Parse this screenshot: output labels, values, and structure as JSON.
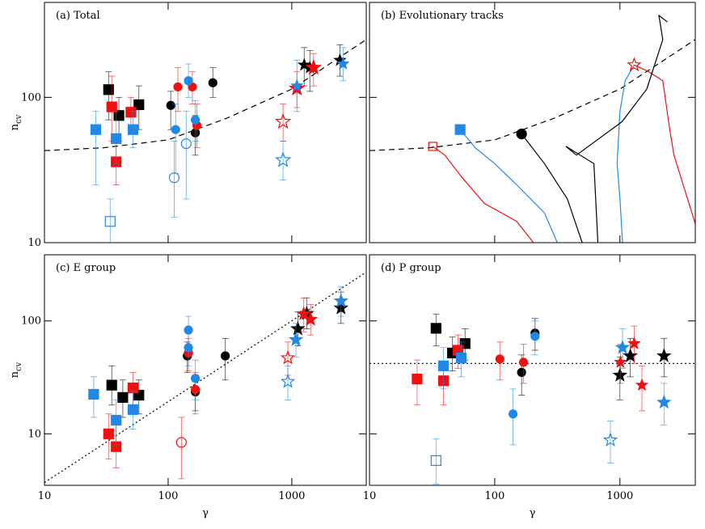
{
  "chart_data": [
    {
      "type": "scatter",
      "title": "(a) Total",
      "xlim": [
        10,
        4000
      ],
      "ylim": [
        10,
        450
      ],
      "log_x": true,
      "log_y": true,
      "yticks": [
        10,
        100
      ],
      "ylabel": {
        "base": "n",
        "sub": "cv"
      },
      "series": [
        {
          "style": "dashed",
          "color": "#000000",
          "x": [
            10,
            30,
            100,
            300,
            1000,
            4000
          ],
          "y": [
            43,
            45,
            51,
            72,
            114,
            250
          ]
        },
        {
          "marker": "square",
          "filled": true,
          "color": "#000000",
          "size": 6,
          "x": [
            33,
            40,
            58
          ],
          "y": [
            113,
            75,
            89
          ],
          "ylow": [
            70,
            50,
            60
          ],
          "yhigh": [
            150,
            100,
            120
          ]
        },
        {
          "marker": "square",
          "filled": true,
          "color": "#f01010",
          "size": 6,
          "x": [
            38,
            50,
            35
          ],
          "y": [
            36,
            79,
            86
          ],
          "ylow": [
            25,
            60,
            50
          ],
          "yhigh": [
            50,
            100,
            140
          ]
        },
        {
          "marker": "square",
          "filled": true,
          "color": "#2288e8",
          "size": 6,
          "x": [
            38,
            52,
            26
          ],
          "y": [
            52,
            60,
            60
          ],
          "ylow": [
            35,
            45,
            25
          ],
          "yhigh": [
            80,
            80,
            80
          ]
        },
        {
          "marker": "square",
          "filled": false,
          "color": "#2288e8",
          "size": 6,
          "x": [
            34
          ],
          "y": [
            14
          ],
          "ylow": [
            10
          ],
          "yhigh": [
            20
          ]
        },
        {
          "marker": "circle",
          "filled": true,
          "color": "#000000",
          "size": 5,
          "x": [
            166,
            105,
            230
          ],
          "y": [
            57,
            88,
            126
          ],
          "ylow": [
            40,
            60,
            100
          ],
          "yhigh": [
            75,
            110,
            160
          ]
        },
        {
          "marker": "circle",
          "filled": true,
          "color": "#f01010",
          "size": 5,
          "x": [
            171,
            157,
            120
          ],
          "y": [
            64,
            118,
            118
          ],
          "ylow": [
            45,
            90,
            80
          ],
          "yhigh": [
            90,
            150,
            160
          ]
        },
        {
          "marker": "circle",
          "filled": true,
          "color": "#2288e8",
          "size": 5,
          "x": [
            166,
            146,
            115
          ],
          "y": [
            70,
            130,
            60
          ],
          "ylow": [
            50,
            100,
            30
          ],
          "yhigh": [
            95,
            170,
            90
          ]
        },
        {
          "marker": "circle",
          "filled": false,
          "color": "#2288e8",
          "size": 6,
          "x": [
            140,
            112
          ],
          "y": [
            48,
            28
          ],
          "ylow": [
            20,
            15
          ],
          "yhigh": [
            80,
            50
          ]
        },
        {
          "marker": "star",
          "filled": true,
          "color": "#000000",
          "size": 7,
          "x": [
            1260,
            2450,
            1400
          ],
          "y": [
            167,
            180,
            160
          ],
          "ylow": [
            120,
            140,
            110
          ],
          "yhigh": [
            220,
            230,
            210
          ]
        },
        {
          "marker": "star",
          "filled": true,
          "color": "#f01010",
          "size": 9,
          "x": [
            1100,
            1500
          ],
          "y": [
            115,
            160
          ],
          "ylow": [
            85,
            120
          ],
          "yhigh": [
            150,
            200
          ]
        },
        {
          "marker": "star",
          "filled": false,
          "color": "#f01010",
          "size": 9,
          "x": [
            850
          ],
          "y": [
            68
          ],
          "ylow": [
            50
          ],
          "yhigh": [
            90
          ]
        },
        {
          "marker": "star",
          "filled": true,
          "color": "#2288e8",
          "size": 7,
          "x": [
            1100,
            2600
          ],
          "y": [
            120,
            170
          ],
          "ylow": [
            80,
            130
          ],
          "yhigh": [
            180,
            220
          ]
        },
        {
          "marker": "star",
          "filled": false,
          "color": "#2288e8",
          "size": 9,
          "x": [
            850
          ],
          "y": [
            37
          ],
          "ylow": [
            27
          ],
          "yhigh": [
            50
          ]
        }
      ]
    },
    {
      "type": "line",
      "title": "(b) Evolutionary tracks",
      "xlim": [
        10,
        4000
      ],
      "ylim": [
        10,
        450
      ],
      "log_x": true,
      "log_y": true,
      "series": [
        {
          "style": "dashed",
          "color": "#000000",
          "x": [
            10,
            30,
            100,
            300,
            1000,
            4000
          ],
          "y": [
            43,
            45,
            51,
            72,
            114,
            250
          ]
        },
        {
          "style": "solid",
          "color": "#f01010",
          "x": [
            4000,
            2700,
            2500,
            2200,
            1700,
            1300,
            null,
            204,
            150,
            83,
            55,
            40,
            32
          ],
          "y": [
            13.5,
            40,
            60,
            130,
            150,
            167,
            null,
            10,
            14,
            18.6,
            28,
            40,
            46
          ]
        },
        {
          "style": "solid",
          "color": "#2288e8",
          "x": [
            1050,
            1000,
            950,
            1000,
            1100,
            1300,
            null,
            316,
            250,
            150,
            100,
            70,
            53
          ],
          "y": [
            10,
            20,
            35,
            80,
            130,
            167,
            null,
            10,
            16,
            25,
            35,
            45,
            60
          ]
        },
        {
          "style": "solid",
          "color": "#000000",
          "x": [
            667,
            620,
            370,
            450,
            1040,
            1640,
            2200,
            2050,
            2400,
            null,
            500,
            380,
            250,
            164
          ],
          "y": [
            10,
            35,
            46,
            40,
            68,
            114,
            250,
            366,
            330,
            null,
            10,
            20,
            35,
            56
          ]
        },
        {
          "marker": "square",
          "filled": true,
          "color": "#2288e8",
          "size": 6,
          "x": [
            53
          ],
          "y": [
            60
          ]
        },
        {
          "marker": "square",
          "filled": false,
          "color": "#f01010",
          "size": 5,
          "x": [
            32
          ],
          "y": [
            46
          ]
        },
        {
          "marker": "circle",
          "filled": true,
          "color": "#000000",
          "size": 6,
          "x": [
            164
          ],
          "y": [
            56
          ]
        },
        {
          "marker": "star",
          "filled": false,
          "color": "#f01010",
          "size": 8,
          "x": [
            1300
          ],
          "y": [
            167
          ]
        }
      ]
    },
    {
      "type": "scatter",
      "title": "(c) E group",
      "xlim": [
        10,
        4000
      ],
      "ylim": [
        3.5,
        385
      ],
      "log_x": true,
      "log_y": true,
      "xticks": [
        10,
        100,
        1000
      ],
      "yticks": [
        10,
        100
      ],
      "xlabel": "γ",
      "ylabel": {
        "base": "n",
        "sub": "cv"
      },
      "series": [
        {
          "style": "dotted",
          "color": "#000000",
          "x": [
            10,
            4000
          ],
          "y": [
            3.7,
            270
          ]
        },
        {
          "marker": "square",
          "filled": true,
          "color": "#000000",
          "size": 6,
          "x": [
            43,
            58,
            35
          ],
          "y": [
            21,
            22,
            27
          ],
          "ylow": [
            14,
            15,
            18
          ],
          "yhigh": [
            30,
            30,
            40
          ]
        },
        {
          "marker": "square",
          "filled": true,
          "color": "#f01010",
          "size": 6,
          "x": [
            38,
            52,
            33
          ],
          "y": [
            7.7,
            25.5,
            10
          ],
          "ylow": [
            5,
            18,
            6
          ],
          "yhigh": [
            12,
            35,
            15
          ]
        },
        {
          "marker": "square",
          "filled": true,
          "color": "#2288e8",
          "size": 6,
          "x": [
            38,
            52,
            25
          ],
          "y": [
            13.2,
            16.4,
            22.4
          ],
          "ylow": [
            8,
            11,
            14
          ],
          "yhigh": [
            20,
            24,
            32
          ]
        },
        {
          "marker": "circle",
          "filled": true,
          "color": "#000000",
          "size": 5,
          "x": [
            166,
            143,
            290
          ],
          "y": [
            23.5,
            49,
            49
          ],
          "ylow": [
            16,
            35,
            30
          ],
          "yhigh": [
            32,
            65,
            70
          ]
        },
        {
          "marker": "circle",
          "filled": true,
          "color": "#f01010",
          "size": 5,
          "x": [
            166,
            146
          ],
          "y": [
            24.7,
            52
          ],
          "ylow": [
            15,
            36
          ],
          "yhigh": [
            35,
            70
          ]
        },
        {
          "marker": "circle",
          "filled": false,
          "color": "#f01010",
          "size": 6,
          "x": [
            128
          ],
          "y": [
            8.4
          ],
          "ylow": [
            4
          ],
          "yhigh": [
            14
          ]
        },
        {
          "marker": "circle",
          "filled": true,
          "color": "#2288e8",
          "size": 5,
          "x": [
            166,
            146,
            146
          ],
          "y": [
            31,
            58,
            83
          ],
          "ylow": [
            20,
            40,
            60
          ],
          "yhigh": [
            45,
            80,
            110
          ]
        },
        {
          "marker": "star",
          "filled": true,
          "color": "#000000",
          "size": 8,
          "x": [
            1120,
            1320,
            2500
          ],
          "y": [
            85,
            116,
            130
          ],
          "ylow": [
            60,
            85,
            95
          ],
          "yhigh": [
            120,
            160,
            180
          ]
        },
        {
          "marker": "star",
          "filled": true,
          "color": "#f01010",
          "size": 8,
          "x": [
            1420,
            1250
          ],
          "y": [
            103,
            115
          ],
          "ylow": [
            75,
            80
          ],
          "yhigh": [
            140,
            160
          ]
        },
        {
          "marker": "star",
          "filled": false,
          "color": "#f01010",
          "size": 8,
          "x": [
            930
          ],
          "y": [
            47
          ],
          "ylow": [
            33
          ],
          "yhigh": [
            65
          ]
        },
        {
          "marker": "star",
          "filled": true,
          "color": "#2288e8",
          "size": 8,
          "x": [
            1080,
            2500
          ],
          "y": [
            68,
            150
          ],
          "ylow": [
            48,
            110
          ],
          "yhigh": [
            95,
            200
          ]
        },
        {
          "marker": "star",
          "filled": false,
          "color": "#2288e8",
          "size": 8,
          "x": [
            930
          ],
          "y": [
            29
          ],
          "ylow": [
            20
          ],
          "yhigh": [
            40
          ]
        }
      ]
    },
    {
      "type": "scatter",
      "title": "(d) P group",
      "xlim": [
        10,
        4000
      ],
      "ylim": [
        3.5,
        385
      ],
      "log_x": true,
      "log_y": true,
      "xticks": [
        10,
        100,
        1000
      ],
      "xlabel": "γ",
      "series": [
        {
          "style": "dotted",
          "color": "#000000",
          "x": [
            10,
            4000
          ],
          "y": [
            42,
            42
          ]
        },
        {
          "marker": "square",
          "filled": true,
          "color": "#000000",
          "size": 6,
          "x": [
            46,
            58,
            34
          ],
          "y": [
            52,
            63,
            86
          ],
          "ylow": [
            36,
            45,
            60
          ],
          "yhigh": [
            72,
            85,
            115
          ]
        },
        {
          "marker": "square",
          "filled": true,
          "color": "#f01010",
          "size": 6,
          "x": [
            39,
            51,
            24
          ],
          "y": [
            29.5,
            55,
            30.6
          ],
          "ylow": [
            18,
            38,
            18
          ],
          "yhigh": [
            42,
            75,
            45
          ]
        },
        {
          "marker": "square",
          "filled": true,
          "color": "#2288e8",
          "size": 6,
          "x": [
            39,
            54
          ],
          "y": [
            40,
            47
          ],
          "ylow": [
            25,
            32
          ],
          "yhigh": [
            58,
            65
          ]
        },
        {
          "marker": "square",
          "filled": false,
          "color": "#2288e8",
          "size": 6,
          "x": [
            34
          ],
          "y": [
            5.8
          ],
          "ylow": [
            3.6
          ],
          "yhigh": [
            9
          ]
        },
        {
          "marker": "circle",
          "filled": true,
          "color": "#000000",
          "size": 5,
          "x": [
            164,
            210
          ],
          "y": [
            35,
            78
          ],
          "ylow": [
            22,
            55
          ],
          "yhigh": [
            50,
            105
          ]
        },
        {
          "marker": "circle",
          "filled": true,
          "color": "#f01010",
          "size": 5,
          "x": [
            170,
            110
          ],
          "y": [
            43,
            46
          ],
          "ylow": [
            28,
            30
          ],
          "yhigh": [
            62,
            65
          ]
        },
        {
          "marker": "circle",
          "filled": true,
          "color": "#2288e8",
          "size": 5,
          "x": [
            210,
            140
          ],
          "y": [
            73,
            15
          ],
          "ylow": [
            50,
            8
          ],
          "yhigh": [
            100,
            25
          ]
        },
        {
          "marker": "star",
          "filled": true,
          "color": "#000000",
          "size": 8,
          "x": [
            1000,
            1210,
            2250
          ],
          "y": [
            33,
            49,
            49
          ],
          "ylow": [
            20,
            32,
            32
          ],
          "yhigh": [
            48,
            70,
            70
          ]
        },
        {
          "marker": "star",
          "filled": true,
          "color": "#f01010",
          "size": 7,
          "x": [
            1010,
            1300,
            1500
          ],
          "y": [
            43,
            63,
            27
          ],
          "ylow": [
            28,
            42,
            16
          ],
          "yhigh": [
            62,
            90,
            40
          ]
        },
        {
          "marker": "star",
          "filled": true,
          "color": "#2288e8",
          "size": 8,
          "x": [
            1050,
            2250
          ],
          "y": [
            58,
            19
          ],
          "ylow": [
            38,
            12
          ],
          "yhigh": [
            85,
            28
          ]
        },
        {
          "marker": "star",
          "filled": false,
          "color": "#2288e8",
          "size": 8,
          "x": [
            840
          ],
          "y": [
            8.8
          ],
          "ylow": [
            5.5
          ],
          "yhigh": [
            13
          ]
        }
      ]
    }
  ]
}
